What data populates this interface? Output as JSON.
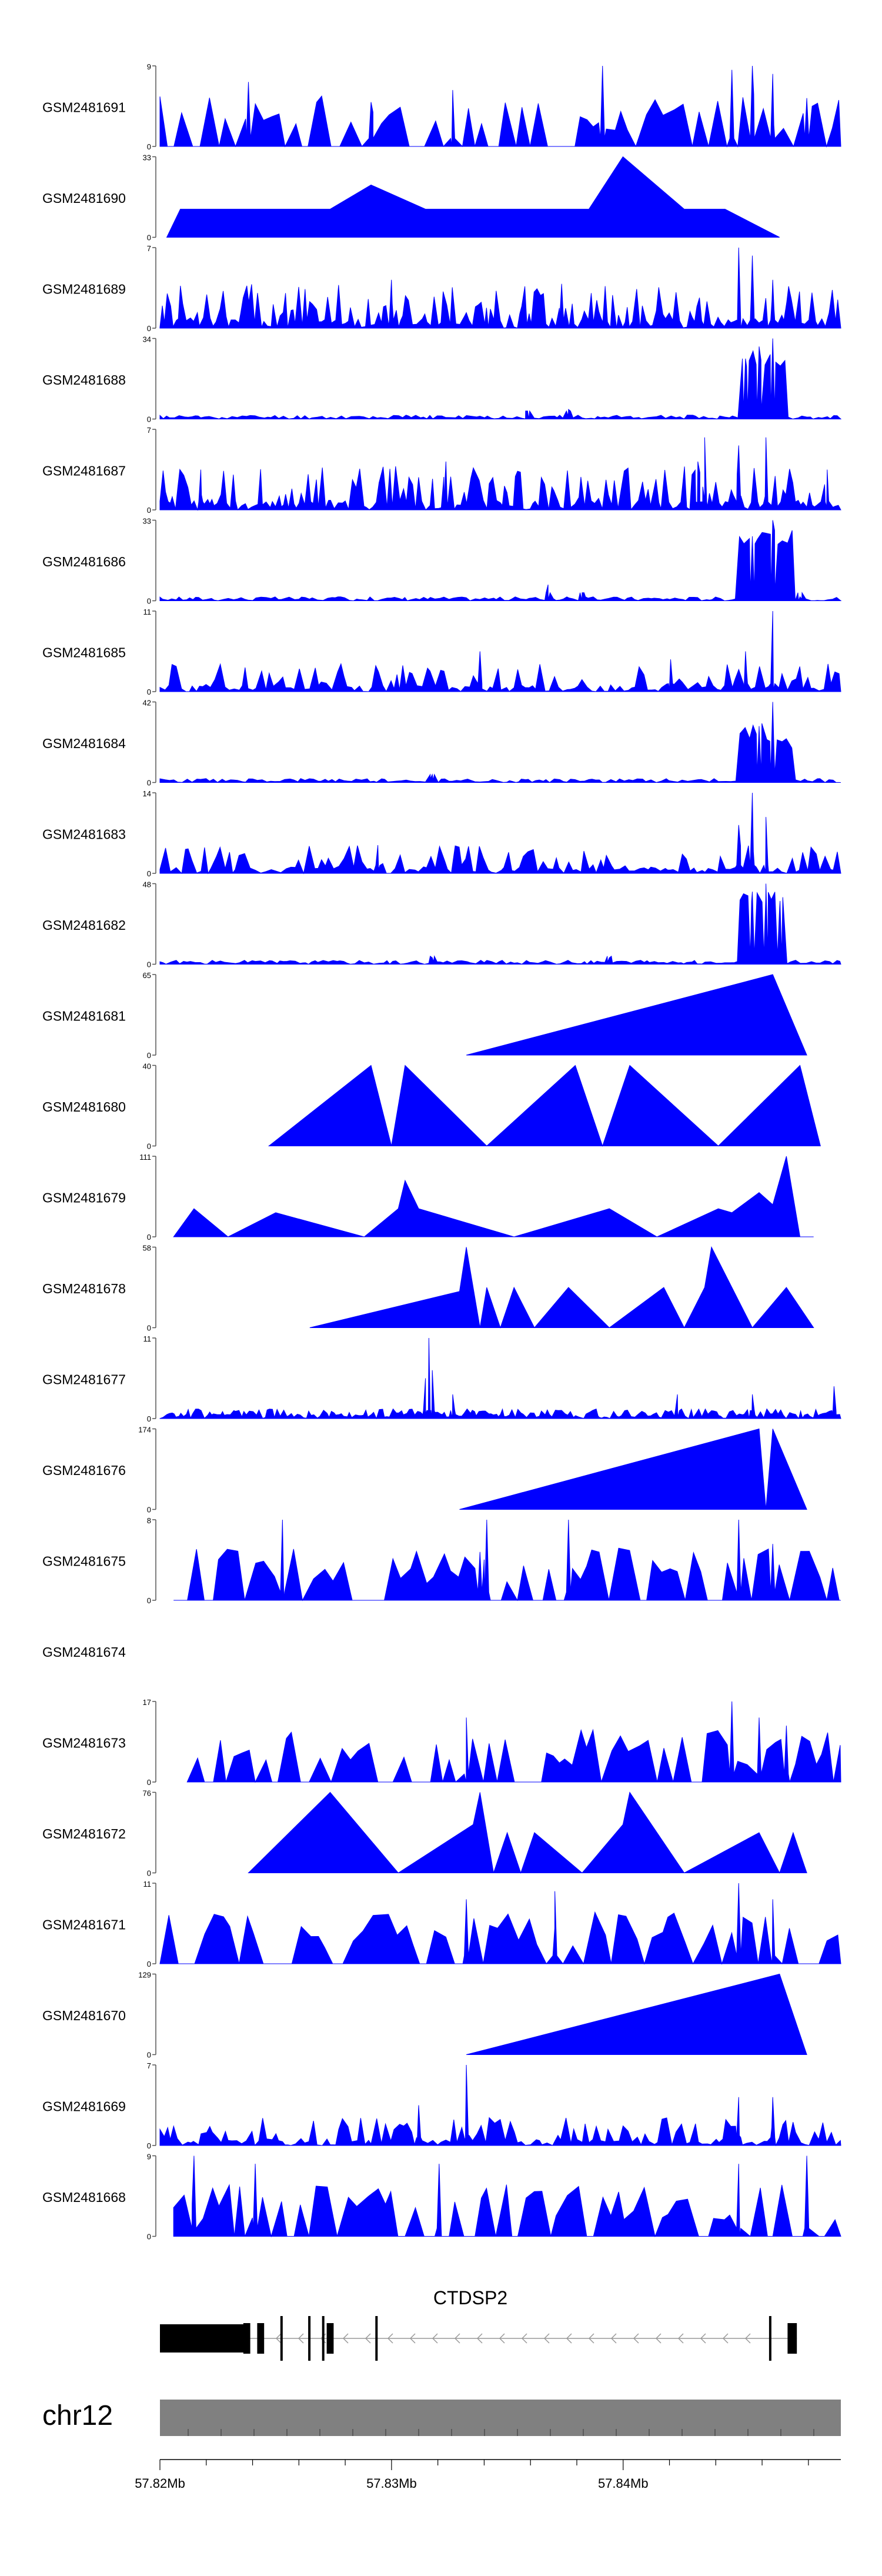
{
  "chart_data": {
    "type": "area",
    "title": "",
    "accent_color": "#0000ff",
    "x_axis": {
      "unit": "Mb",
      "range": [
        57.82,
        57.8494
      ],
      "tick_labels": [
        "57.82Mb",
        "57.83Mb",
        "57.84Mb"
      ],
      "tick_values": [
        57.82,
        57.83,
        57.84
      ]
    },
    "chromosome": {
      "label": "chr12",
      "color": "#808080"
    },
    "gene": {
      "name": "CTDSP2",
      "strand": "-",
      "exons_mb": [
        [
          57.82,
          57.8237
        ],
        [
          57.8236,
          57.8239
        ],
        [
          57.8242,
          57.8245
        ],
        [
          57.8252,
          57.8253
        ],
        [
          57.8264,
          57.8265
        ],
        [
          57.827,
          57.8271
        ],
        [
          57.8272,
          57.8275
        ],
        [
          57.8293,
          57.8294
        ],
        [
          57.8463,
          57.8464
        ],
        [
          57.8471,
          57.8475
        ]
      ]
    },
    "series": [
      {
        "name": "GSM2481691",
        "ymax": 9,
        "start": 0.0,
        "end": 1.0,
        "profile": "sparse",
        "seed": 3,
        "peaks": [
          [
            0.13,
            0.8
          ],
          [
            0.31,
            0.55
          ],
          [
            0.43,
            0.7
          ],
          [
            0.65,
            1.0
          ],
          [
            0.84,
            0.95
          ],
          [
            0.87,
            1.0
          ],
          [
            0.9,
            0.9
          ],
          [
            0.95,
            0.6
          ]
        ]
      },
      {
        "name": "GSM2481690",
        "ymax": 33,
        "start": 0.01,
        "end": 0.91,
        "profile": "zigzag",
        "seed": 5,
        "peaks": [
          [
            0.03,
            0.35
          ],
          [
            0.18,
            0.35
          ],
          [
            0.25,
            0.35
          ],
          [
            0.31,
            0.65
          ],
          [
            0.39,
            0.35
          ],
          [
            0.51,
            0.35
          ],
          [
            0.63,
            0.35
          ],
          [
            0.68,
            1.0
          ],
          [
            0.77,
            0.35
          ],
          [
            0.83,
            0.35
          ]
        ]
      },
      {
        "name": "GSM2481689",
        "ymax": 7,
        "start": 0.0,
        "end": 1.0,
        "profile": "dense",
        "seed": 7,
        "peaks": [
          [
            0.34,
            0.6
          ],
          [
            0.59,
            0.55
          ],
          [
            0.85,
            1.0
          ],
          [
            0.87,
            0.9
          ],
          [
            0.9,
            0.6
          ]
        ]
      },
      {
        "name": "GSM2481688",
        "ymax": 34,
        "start": 0.0,
        "end": 1.0,
        "profile": "lowblock",
        "seed": 11,
        "peaks": [
          [
            0.54,
            0.1
          ],
          [
            0.6,
            0.12
          ],
          [
            0.86,
            0.75
          ],
          [
            0.88,
            0.9
          ],
          [
            0.9,
            1.0
          ]
        ],
        "block": [
          0.85,
          0.92,
          0.65
        ]
      },
      {
        "name": "GSM2481687",
        "ymax": 7,
        "start": 0.0,
        "end": 1.0,
        "profile": "dense",
        "seed": 13,
        "peaks": [
          [
            0.06,
            0.5
          ],
          [
            0.42,
            0.6
          ],
          [
            0.79,
            0.6
          ],
          [
            0.8,
            0.9
          ],
          [
            0.85,
            0.8
          ],
          [
            0.89,
            0.9
          ],
          [
            0.98,
            0.5
          ]
        ]
      },
      {
        "name": "GSM2481686",
        "ymax": 33,
        "start": 0.0,
        "end": 1.0,
        "profile": "lowblock",
        "seed": 17,
        "peaks": [
          [
            0.57,
            0.2
          ],
          [
            0.62,
            0.1
          ],
          [
            0.87,
            0.8
          ],
          [
            0.9,
            1.0
          ],
          [
            0.94,
            0.05
          ]
        ],
        "block": [
          0.85,
          0.93,
          0.7
        ]
      },
      {
        "name": "GSM2481685",
        "ymax": 11,
        "start": 0.0,
        "end": 1.0,
        "profile": "medium",
        "seed": 19,
        "peaks": [
          [
            0.47,
            0.5
          ],
          [
            0.75,
            0.4
          ],
          [
            0.86,
            0.5
          ],
          [
            0.9,
            1.0
          ]
        ]
      },
      {
        "name": "GSM2481684",
        "ymax": 42,
        "start": 0.0,
        "end": 1.0,
        "profile": "lowblock",
        "seed": 23,
        "peaks": [
          [
            0.4,
            0.1
          ],
          [
            0.88,
            0.7
          ],
          [
            0.9,
            1.0
          ]
        ],
        "block": [
          0.85,
          0.93,
          0.4
        ]
      },
      {
        "name": "GSM2481683",
        "ymax": 14,
        "start": 0.0,
        "end": 1.0,
        "profile": "medium",
        "seed": 29,
        "peaks": [
          [
            0.32,
            0.35
          ],
          [
            0.85,
            0.6
          ],
          [
            0.87,
            1.0
          ],
          [
            0.89,
            0.7
          ]
        ]
      },
      {
        "name": "GSM2481682",
        "ymax": 48,
        "start": 0.0,
        "end": 1.0,
        "profile": "lowblock",
        "seed": 31,
        "peaks": [
          [
            0.4,
            0.08
          ],
          [
            0.66,
            0.08
          ],
          [
            0.87,
            0.9
          ],
          [
            0.89,
            1.0
          ],
          [
            0.91,
            0.7
          ]
        ],
        "block": [
          0.85,
          0.92,
          0.75
        ]
      },
      {
        "name": "GSM2481681",
        "ymax": 65,
        "start": 0.45,
        "end": 0.95,
        "profile": "ramp",
        "seed": 37,
        "peaks": [
          [
            0.45,
            0.0
          ],
          [
            0.9,
            1.0
          ],
          [
            0.95,
            0.0
          ]
        ]
      },
      {
        "name": "GSM2481680",
        "ymax": 40,
        "start": 0.16,
        "end": 0.97,
        "profile": "zigzag",
        "seed": 41,
        "peaks": [
          [
            0.16,
            0.0
          ],
          [
            0.31,
            1.0
          ],
          [
            0.34,
            0.0
          ],
          [
            0.36,
            1.0
          ],
          [
            0.48,
            0.0
          ],
          [
            0.61,
            1.0
          ],
          [
            0.65,
            0.0
          ],
          [
            0.69,
            1.0
          ],
          [
            0.82,
            0.0
          ],
          [
            0.94,
            1.0
          ],
          [
            0.97,
            0.0
          ]
        ]
      },
      {
        "name": "GSM2481679",
        "ymax": 111,
        "start": 0.02,
        "end": 0.96,
        "profile": "zigzag",
        "seed": 43,
        "peaks": [
          [
            0.02,
            0.0
          ],
          [
            0.05,
            0.35
          ],
          [
            0.1,
            0.0
          ],
          [
            0.17,
            0.3
          ],
          [
            0.3,
            0.0
          ],
          [
            0.35,
            0.35
          ],
          [
            0.36,
            0.7
          ],
          [
            0.38,
            0.35
          ],
          [
            0.52,
            0.0
          ],
          [
            0.66,
            0.35
          ],
          [
            0.73,
            0.0
          ],
          [
            0.82,
            0.35
          ],
          [
            0.84,
            0.3
          ],
          [
            0.88,
            0.55
          ],
          [
            0.9,
            0.4
          ],
          [
            0.92,
            1.0
          ],
          [
            0.94,
            0.0
          ]
        ]
      },
      {
        "name": "GSM2481678",
        "ymax": 58,
        "start": 0.22,
        "end": 0.96,
        "profile": "zigzag",
        "seed": 47,
        "peaks": [
          [
            0.22,
            0.0
          ],
          [
            0.44,
            0.45
          ],
          [
            0.45,
            1.0
          ],
          [
            0.47,
            0.0
          ],
          [
            0.48,
            0.5
          ],
          [
            0.5,
            0.0
          ],
          [
            0.52,
            0.5
          ],
          [
            0.55,
            0.0
          ],
          [
            0.6,
            0.5
          ],
          [
            0.66,
            0.0
          ],
          [
            0.74,
            0.5
          ],
          [
            0.77,
            0.0
          ],
          [
            0.8,
            0.5
          ],
          [
            0.81,
            1.0
          ],
          [
            0.87,
            0.0
          ],
          [
            0.92,
            0.5
          ],
          [
            0.96,
            0.0
          ]
        ]
      },
      {
        "name": "GSM2481677",
        "ymax": 11,
        "start": 0.0,
        "end": 1.0,
        "profile": "lowdense",
        "seed": 53,
        "peaks": [
          [
            0.39,
            0.5
          ],
          [
            0.395,
            1.0
          ],
          [
            0.4,
            0.6
          ],
          [
            0.43,
            0.3
          ],
          [
            0.76,
            0.3
          ],
          [
            0.87,
            0.3
          ],
          [
            0.99,
            0.4
          ]
        ]
      },
      {
        "name": "GSM2481676",
        "ymax": 174,
        "start": 0.44,
        "end": 0.95,
        "profile": "ramp",
        "seed": 59,
        "peaks": [
          [
            0.44,
            0.0
          ],
          [
            0.88,
            1.0
          ],
          [
            0.89,
            0.0
          ],
          [
            0.9,
            1.0
          ],
          [
            0.95,
            0.0
          ]
        ]
      },
      {
        "name": "GSM2481675",
        "ymax": 8,
        "start": 0.02,
        "end": 1.0,
        "profile": "sparse",
        "seed": 61,
        "peaks": [
          [
            0.18,
            1.0
          ],
          [
            0.47,
            0.6
          ],
          [
            0.48,
            1.0
          ],
          [
            0.6,
            1.0
          ],
          [
            0.85,
            1.0
          ],
          [
            0.9,
            0.7
          ]
        ]
      },
      {
        "name": "GSM2481674",
        "ymax": null,
        "start": 0.0,
        "end": 0.0,
        "profile": "empty",
        "seed": 0,
        "peaks": []
      },
      {
        "name": "GSM2481673",
        "ymax": 17,
        "start": 0.04,
        "end": 1.0,
        "profile": "sparse",
        "seed": 67,
        "peaks": [
          [
            0.45,
            0.8
          ],
          [
            0.84,
            1.0
          ],
          [
            0.88,
            0.8
          ],
          [
            0.92,
            0.7
          ]
        ]
      },
      {
        "name": "GSM2481672",
        "ymax": 76,
        "start": 0.13,
        "end": 0.95,
        "profile": "zigzag",
        "seed": 71,
        "peaks": [
          [
            0.13,
            0.0
          ],
          [
            0.25,
            1.0
          ],
          [
            0.35,
            0.0
          ],
          [
            0.46,
            0.6
          ],
          [
            0.47,
            1.0
          ],
          [
            0.49,
            0.0
          ],
          [
            0.51,
            0.5
          ],
          [
            0.53,
            0.0
          ],
          [
            0.55,
            0.5
          ],
          [
            0.62,
            0.0
          ],
          [
            0.68,
            0.6
          ],
          [
            0.69,
            1.0
          ],
          [
            0.77,
            0.0
          ],
          [
            0.88,
            0.5
          ],
          [
            0.91,
            0.0
          ],
          [
            0.93,
            0.5
          ],
          [
            0.95,
            0.0
          ]
        ]
      },
      {
        "name": "GSM2481671",
        "ymax": 11,
        "start": 0.0,
        "end": 1.0,
        "profile": "sparse",
        "seed": 73,
        "peaks": [
          [
            0.45,
            0.8
          ],
          [
            0.58,
            0.9
          ],
          [
            0.85,
            1.0
          ],
          [
            0.9,
            0.8
          ]
        ]
      },
      {
        "name": "GSM2481670",
        "ymax": 129,
        "start": 0.45,
        "end": 0.95,
        "profile": "ramp",
        "seed": 79,
        "peaks": [
          [
            0.45,
            0.0
          ],
          [
            0.91,
            1.0
          ],
          [
            0.95,
            0.0
          ]
        ]
      },
      {
        "name": "GSM2481669",
        "ymax": 7,
        "start": 0.0,
        "end": 1.0,
        "profile": "medium",
        "seed": 83,
        "peaks": [
          [
            0.45,
            1.0
          ],
          [
            0.38,
            0.5
          ],
          [
            0.85,
            0.6
          ],
          [
            0.9,
            0.6
          ]
        ]
      },
      {
        "name": "GSM2481668",
        "ymax": 9,
        "start": 0.02,
        "end": 1.0,
        "profile": "sparse",
        "seed": 89,
        "peaks": [
          [
            0.05,
            1.0
          ],
          [
            0.14,
            0.9
          ],
          [
            0.41,
            0.9
          ],
          [
            0.85,
            0.9
          ],
          [
            0.95,
            1.0
          ]
        ]
      }
    ]
  }
}
